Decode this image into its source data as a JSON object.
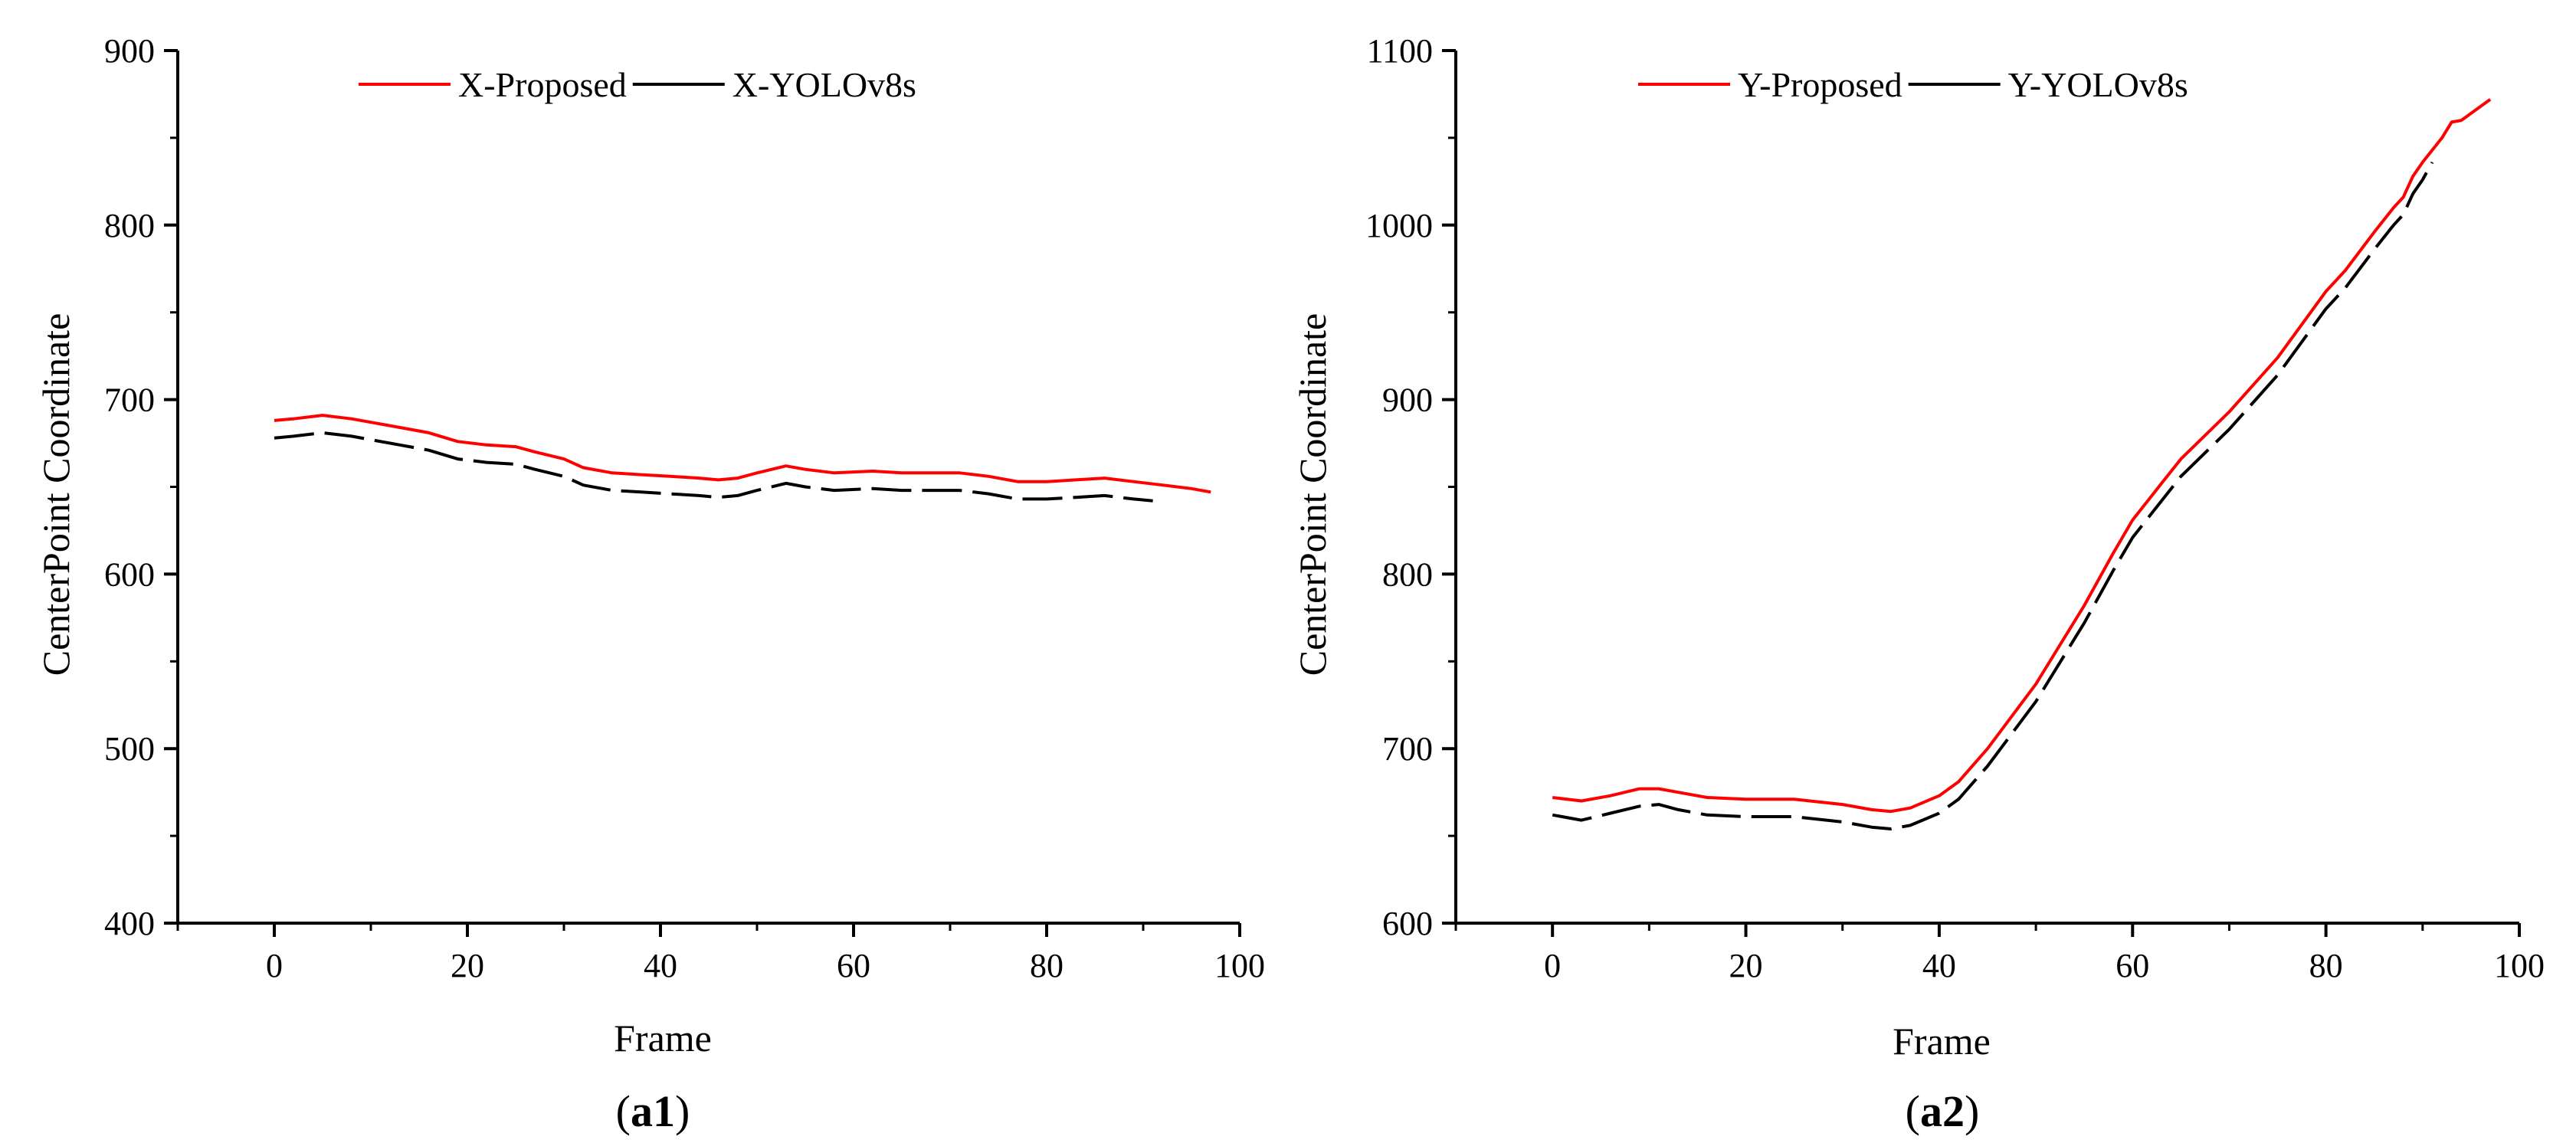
{
  "chart_data": [
    {
      "id": "a1",
      "type": "line",
      "panel_label_open": "(",
      "panel_label_bold": "a1",
      "panel_label_close": ")",
      "xlabel": "Frame",
      "ylabel": "CenterPoint Coordinate",
      "xlim": [
        -10,
        100
      ],
      "ylim": [
        400,
        900
      ],
      "xticks": [
        0,
        20,
        40,
        60,
        80,
        100
      ],
      "yticks": [
        400,
        500,
        600,
        700,
        800,
        900
      ],
      "legend_position": "top",
      "series": [
        {
          "name": "X-Proposed",
          "color": "#ff0000",
          "style": "solid",
          "x": [
            0,
            2,
            5,
            8,
            10,
            13,
            16,
            19,
            22,
            25,
            27,
            30,
            32,
            35,
            38,
            41,
            44,
            46,
            48,
            50,
            53,
            55,
            58,
            62,
            65,
            68,
            71,
            74,
            77,
            80,
            83,
            86,
            89,
            92,
            95,
            97
          ],
          "y": [
            688,
            689,
            691,
            689,
            687,
            684,
            681,
            676,
            674,
            673,
            670,
            666,
            661,
            658,
            657,
            656,
            655,
            654,
            655,
            658,
            662,
            660,
            658,
            659,
            658,
            658,
            658,
            656,
            653,
            653,
            654,
            655,
            653,
            651,
            649,
            647
          ]
        },
        {
          "name": "X-YOLOv8s",
          "color": "#000000",
          "style": "dashed",
          "x": [
            0,
            2,
            5,
            8,
            10,
            13,
            16,
            19,
            22,
            25,
            27,
            30,
            32,
            35,
            38,
            41,
            44,
            46,
            48,
            50,
            53,
            55,
            58,
            62,
            65,
            68,
            71,
            74,
            77,
            80,
            83,
            86,
            89,
            91
          ],
          "y": [
            678,
            679,
            681,
            679,
            677,
            674,
            671,
            666,
            664,
            663,
            660,
            656,
            651,
            648,
            647,
            646,
            645,
            644,
            645,
            648,
            652,
            650,
            648,
            649,
            648,
            648,
            648,
            646,
            643,
            643,
            644,
            645,
            643,
            642
          ]
        }
      ]
    },
    {
      "id": "a2",
      "type": "line",
      "panel_label_open": "(",
      "panel_label_bold": "a2",
      "panel_label_close": ")",
      "xlabel": "Frame",
      "ylabel": "CenterPoint Coordinate",
      "xlim": [
        -10,
        100
      ],
      "ylim": [
        600,
        1100
      ],
      "xticks": [
        0,
        20,
        40,
        60,
        80,
        100
      ],
      "yticks": [
        600,
        700,
        800,
        900,
        1000,
        1100
      ],
      "legend_position": "top",
      "series": [
        {
          "name": "Y-Proposed",
          "color": "#ff0000",
          "style": "solid",
          "x": [
            0,
            3,
            6,
            9,
            11,
            13,
            16,
            20,
            25,
            30,
            33,
            35,
            37,
            40,
            42,
            45,
            50,
            55,
            58,
            60,
            63,
            65,
            70,
            75,
            80,
            82,
            85,
            87,
            88,
            89,
            90,
            92,
            93,
            94,
            95,
            97
          ],
          "y": [
            672,
            670,
            673,
            677,
            677,
            675,
            672,
            671,
            671,
            668,
            665,
            664,
            666,
            673,
            681,
            700,
            737,
            782,
            812,
            831,
            852,
            866,
            893,
            924,
            962,
            974,
            996,
            1010,
            1016,
            1028,
            1036,
            1050,
            1059,
            1060,
            1064,
            1072
          ]
        },
        {
          "name": "Y-YOLOv8s",
          "color": "#000000",
          "style": "dashed",
          "x": [
            0,
            3,
            6,
            9,
            11,
            13,
            16,
            20,
            25,
            30,
            33,
            35,
            37,
            40,
            42,
            45,
            50,
            55,
            58,
            60,
            63,
            65,
            70,
            75,
            80,
            82,
            85,
            87,
            88,
            89,
            90,
            91
          ],
          "y": [
            662,
            659,
            663,
            667,
            668,
            665,
            662,
            661,
            661,
            658,
            655,
            654,
            656,
            663,
            671,
            690,
            727,
            772,
            802,
            821,
            842,
            856,
            883,
            914,
            952,
            964,
            986,
            1000,
            1006,
            1018,
            1026,
            1036
          ]
        }
      ]
    }
  ]
}
